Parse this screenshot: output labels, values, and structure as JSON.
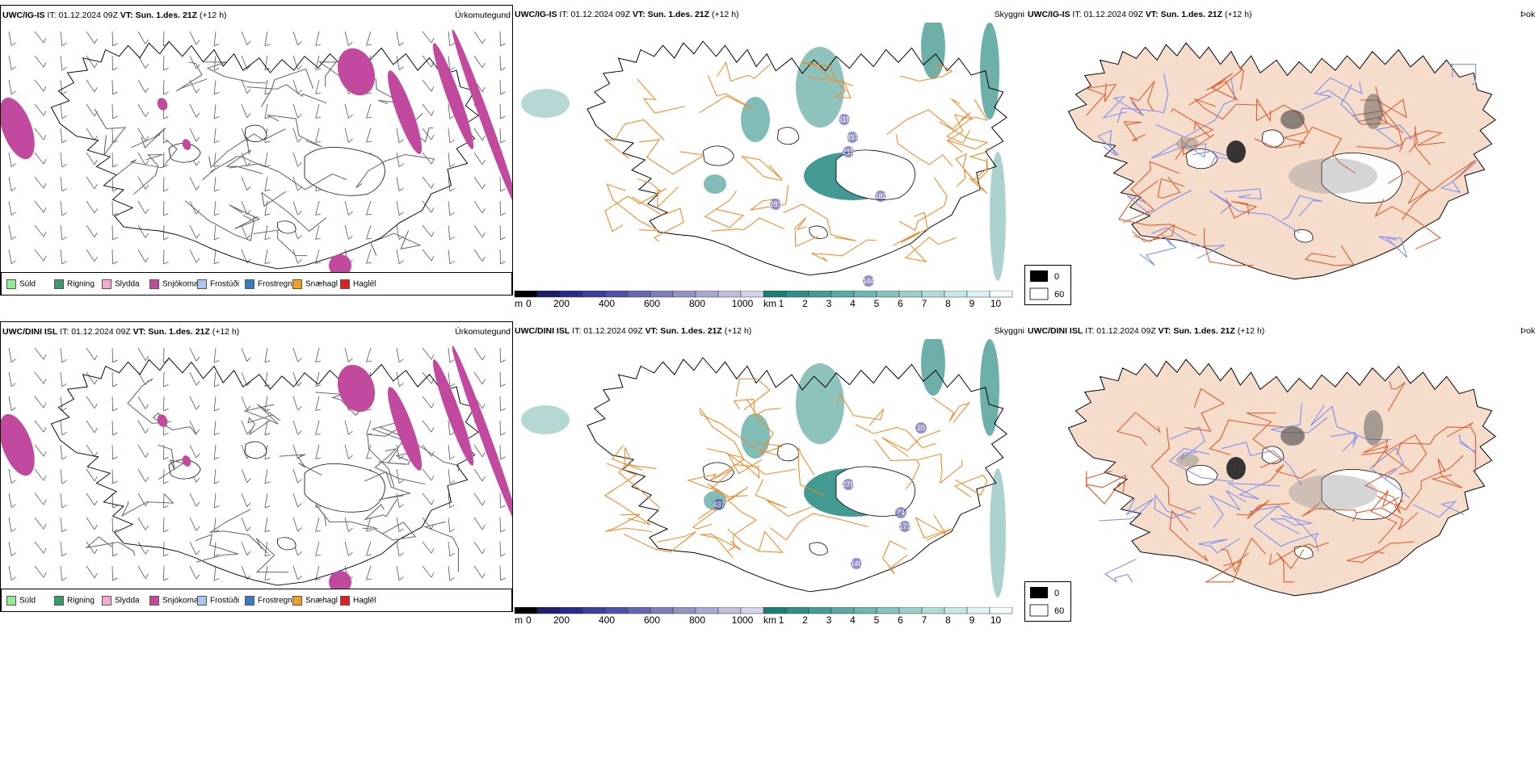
{
  "precip_legend": [
    {
      "label": "Súld",
      "color": "#90ee90"
    },
    {
      "label": "Rigning",
      "color": "#3a9a6a"
    },
    {
      "label": "Slydda",
      "color": "#f4a8d4"
    },
    {
      "label": "Snjókoma",
      "color": "#c24a9e"
    },
    {
      "label": "Frostúði",
      "color": "#a8c8f0"
    },
    {
      "label": "Frostregn",
      "color": "#3a7ac0"
    },
    {
      "label": "Snæhagl",
      "color": "#f0a020"
    },
    {
      "label": "Haglél",
      "color": "#e02020"
    }
  ],
  "panel_params": {
    "precip": "Úrkomutegund",
    "cloud": "Skyggni",
    "fog": "Þokuábendi"
  },
  "rows": [
    {
      "model": "UWC/IG-IS",
      "it_label": "IT:",
      "it": "01.12.2024 09Z",
      "vt_label": "VT:",
      "vt": "Sun. 1.des. 21Z",
      "lead": "(+12 h)",
      "ceiling_labels": [
        "515",
        "837",
        "215",
        "283",
        "182",
        "144"
      ]
    },
    {
      "model": "UWC/DINI ISL",
      "it_label": "IT:",
      "it": "01.12.2024 09Z",
      "vt_label": "VT:",
      "vt": "Sun. 1.des. 21Z",
      "lead": "(+12 h)",
      "ceiling_labels": [
        "20",
        "279",
        "437",
        "74",
        "173",
        "140"
      ]
    }
  ],
  "ceiling_scale": {
    "unit": "m",
    "ticks": [
      "0",
      "200",
      "400",
      "600",
      "800",
      "1000"
    ]
  },
  "visibility_scale": {
    "unit": "km",
    "ticks": [
      "1",
      "2",
      "3",
      "4",
      "5",
      "6",
      "7",
      "8",
      "9",
      "10"
    ]
  },
  "fog_scale": {
    "ticks": [
      "0",
      "60"
    ]
  },
  "colors": {
    "snow": "#c24a9e",
    "visibility": "#2f8f86",
    "ceiling": "#3a3a9a",
    "roads": "#f08a2a",
    "land_fog": "#f5dccb",
    "fog_roads": "#e05a2a",
    "rivers": "#7a8ef0"
  }
}
